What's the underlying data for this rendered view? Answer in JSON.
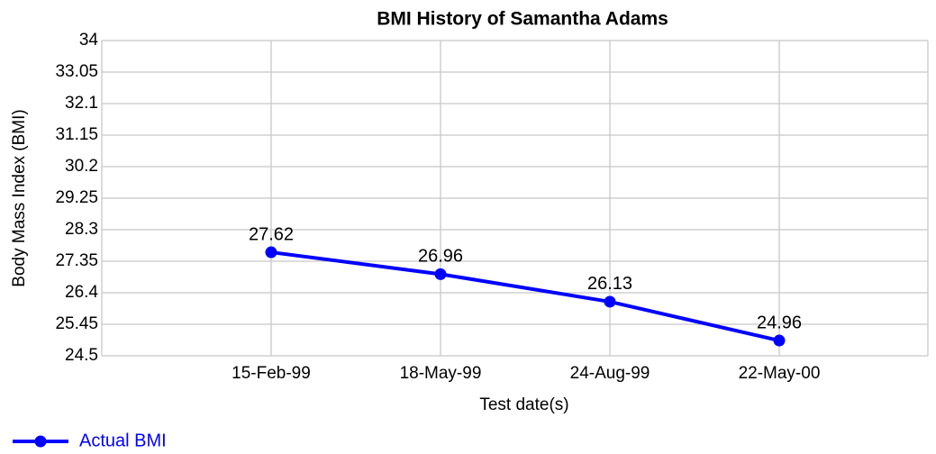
{
  "chart_data": {
    "type": "line",
    "title": "BMI History of Samantha Adams",
    "x_label": "Test date(s)",
    "y_label": "Body Mass Index (BMI)",
    "categories": [
      "15-Feb-99",
      "18-May-99",
      "24-Aug-99",
      "22-May-00"
    ],
    "series": [
      {
        "name": "Actual BMI",
        "color": "#0000ff",
        "values": [
          27.62,
          26.96,
          26.13,
          24.96
        ]
      }
    ],
    "ylim": [
      24.5,
      34
    ],
    "yticks": [
      24.5,
      25.45,
      26.4,
      27.35,
      28.3,
      29.25,
      30.2,
      31.15,
      32.1,
      33.05,
      34
    ],
    "grid": true,
    "legend": "bottom-left"
  }
}
